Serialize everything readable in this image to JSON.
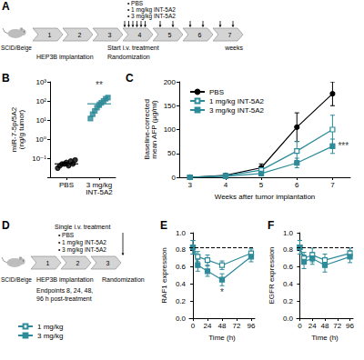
{
  "schematic_A": {
    "panel_label": "A",
    "mouse": "SCID/Beige",
    "weeks": [
      1,
      2,
      3,
      4,
      5,
      6,
      7
    ],
    "unit": "weeks",
    "implantation": "HEP3B implantation",
    "treatment": "Start i.v. treatment",
    "randomization": "Randomization",
    "groups": [
      "• PBS",
      "• 1 mg/kg INT-5A2",
      "• 3 mg/kg INT-5A2"
    ]
  },
  "schematic_D": {
    "panel_label": "D",
    "mouse": "SCID/Beige",
    "weeks": [
      1,
      2,
      3
    ],
    "implantation": "HEP3B implantation",
    "treatment": "Single i.v. treatment",
    "randomization": "Randomization",
    "groups": [
      "• PBS",
      "• 1 mg/kg INT-5A2",
      "• 3 mg/kg INT-5A2"
    ],
    "endpoints": "Endpoints 8, 24, 48, 96 h post-treatment"
  },
  "chart_data": [
    {
      "type": "scatter",
      "panel_label": "B",
      "ylabel": "miR-7-5p/5A2 (ng/g tumor)",
      "categories": [
        "PBS",
        "3 mg/kg INT-5A2"
      ],
      "log": "y",
      "ylim": [
        0.01,
        1000
      ],
      "yticks": [
        {
          "value": 0.1,
          "label": "10⁻¹"
        },
        {
          "value": 1,
          "label": "10⁰"
        },
        {
          "value": 10,
          "label": "10¹"
        },
        {
          "value": 100,
          "label": "10²"
        },
        {
          "value": 1000,
          "label": "10³"
        }
      ],
      "points": [
        {
          "category": "PBS",
          "color": "#000000",
          "marker": "circle",
          "values": [
            0.03,
            0.04,
            0.05,
            0.05,
            0.06,
            0.04,
            0.07,
            0.05,
            0.08
          ]
        },
        {
          "category": "3 mg/kg INT-5A2",
          "color": "#2e8b99",
          "marker": "square",
          "values": [
            12,
            20,
            30,
            45,
            60,
            80,
            100,
            130,
            150
          ]
        }
      ],
      "means": [
        0.05,
        70
      ],
      "errors": [
        0.01,
        18
      ],
      "annotations": [
        {
          "text": "**",
          "x": "3 mg/kg INT-5A2",
          "y": 700
        }
      ]
    },
    {
      "type": "line",
      "panel_label": "C",
      "xlabel": "Weeks after tumor implantation",
      "ylabel": "Baseline-corrected mean AFP (µg/ml)",
      "x": [
        3,
        4,
        5,
        6,
        7
      ],
      "xlim": [
        2.7,
        7.5
      ],
      "xticks": [
        3,
        4,
        5,
        6,
        7
      ],
      "ylim": [
        0,
        200
      ],
      "yticks": [
        0,
        50,
        100,
        150,
        200
      ],
      "legend": "top-left",
      "series": [
        {
          "name": "PBS",
          "color": "#000000",
          "marker": "circle",
          "values": [
            0,
            4,
            20,
            105,
            175
          ],
          "errors": [
            0,
            2,
            8,
            30,
            25
          ]
        },
        {
          "name": "1 mg/kg INT-5A2",
          "color": "#2e8b99",
          "marker": "open-square",
          "values": [
            0,
            3,
            15,
            55,
            100
          ],
          "errors": [
            0,
            1,
            6,
            20,
            30
          ]
        },
        {
          "name": "3 mg/kg INT-5A2",
          "color": "#2e8b99",
          "marker": "square",
          "values": [
            0,
            2,
            8,
            30,
            65
          ],
          "errors": [
            0,
            1,
            3,
            10,
            15
          ]
        }
      ],
      "annotations": [
        {
          "text": "***",
          "x": 7,
          "y": 65
        }
      ]
    },
    {
      "type": "line",
      "panel_label": "E",
      "xlabel": "Time (h)",
      "ylabel": "RAF1 expression",
      "x": [
        0,
        8,
        24,
        48,
        96
      ],
      "xlim": [
        -6,
        102
      ],
      "xticks": [
        0,
        24,
        48,
        72,
        96
      ],
      "ylim": [
        0,
        1
      ],
      "yticks": [
        {
          "value": 0,
          "label": "0.0"
        },
        0.2,
        0.4,
        0.6,
        0.8,
        {
          "value": 1,
          "label": "1.0"
        }
      ],
      "baseline": 0.83,
      "legend": "bottom-left",
      "series": [
        {
          "name": "1 mg/kg",
          "color": "#2e8b99",
          "marker": "open-square",
          "values": [
            0.83,
            0.72,
            0.68,
            0.62,
            0.76
          ],
          "errors": [
            0.08,
            0.06,
            0.06,
            0.05,
            0.05
          ]
        },
        {
          "name": "3 mg/kg",
          "color": "#2e8b99",
          "marker": "square",
          "values": [
            0.83,
            0.62,
            0.55,
            0.45,
            0.72
          ],
          "errors": [
            0.08,
            0.07,
            0.06,
            0.07,
            0.06
          ]
        }
      ],
      "annotations": [
        {
          "text": "*",
          "x": 48,
          "y": 0.3
        }
      ]
    },
    {
      "type": "line",
      "panel_label": "F",
      "xlabel": "Time (h)",
      "ylabel": "EGFR expression",
      "x": [
        0,
        8,
        24,
        48,
        96
      ],
      "xlim": [
        -6,
        102
      ],
      "xticks": [
        0,
        24,
        48,
        72,
        96
      ],
      "ylim": [
        0,
        1
      ],
      "yticks": [
        {
          "value": 0,
          "label": "0.0"
        },
        0.2,
        0.4,
        0.6,
        0.8,
        {
          "value": 1,
          "label": "1.0"
        }
      ],
      "baseline": 0.83,
      "series": [
        {
          "name": "1 mg/kg",
          "color": "#2e8b99",
          "marker": "open-square",
          "values": [
            0.83,
            0.7,
            0.74,
            0.68,
            0.76
          ],
          "errors": [
            0.08,
            0.07,
            0.08,
            0.07,
            0.06
          ]
        },
        {
          "name": "3 mg/kg",
          "color": "#2e8b99",
          "marker": "square",
          "values": [
            0.83,
            0.66,
            0.7,
            0.62,
            0.72
          ],
          "errors": [
            0.08,
            0.08,
            0.07,
            0.08,
            0.07
          ]
        }
      ]
    }
  ]
}
